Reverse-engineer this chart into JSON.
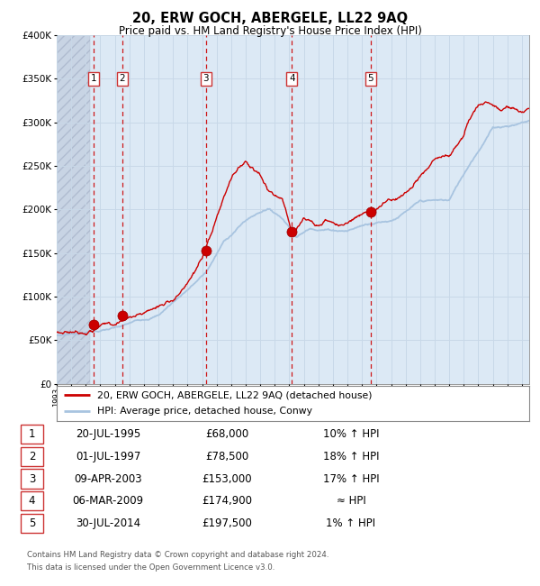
{
  "title": "20, ERW GOCH, ABERGELE, LL22 9AQ",
  "subtitle": "Price paid vs. HM Land Registry's House Price Index (HPI)",
  "legend_line1": "20, ERW GOCH, ABERGELE, LL22 9AQ (detached house)",
  "legend_line2": "HPI: Average price, detached house, Conwy",
  "footer1": "Contains HM Land Registry data © Crown copyright and database right 2024.",
  "footer2": "This data is licensed under the Open Government Licence v3.0.",
  "transactions": [
    {
      "num": 1,
      "date": "20-JUL-1995",
      "price": 68000,
      "hpi_rel": "10% ↑ HPI",
      "year": 1995.55
    },
    {
      "num": 2,
      "date": "01-JUL-1997",
      "price": 78500,
      "hpi_rel": "18% ↑ HPI",
      "year": 1997.5
    },
    {
      "num": 3,
      "date": "09-APR-2003",
      "price": 153000,
      "hpi_rel": "17% ↑ HPI",
      "year": 2003.27
    },
    {
      "num": 4,
      "date": "06-MAR-2009",
      "price": 174900,
      "hpi_rel": "≈ HPI",
      "year": 2009.18
    },
    {
      "num": 5,
      "date": "30-JUL-2014",
      "price": 197500,
      "hpi_rel": "1% ↑ HPI",
      "year": 2014.58
    }
  ],
  "hpi_color": "#a8c4e0",
  "price_color": "#cc0000",
  "dot_color": "#cc0000",
  "vline_color": "#cc0000",
  "box_edge_color": "#cc3333",
  "grid_color": "#c8d8e8",
  "bg_color": "#dce9f5",
  "hatch_color": "#c8d4e4",
  "ylim": [
    0,
    400000
  ],
  "yticks": [
    0,
    50000,
    100000,
    150000,
    200000,
    250000,
    300000,
    350000,
    400000
  ],
  "xmin": 1993.0,
  "xmax": 2025.5,
  "hpi_keypoints": [
    [
      1993.0,
      55000
    ],
    [
      1995.0,
      60000
    ],
    [
      1997.5,
      66000
    ],
    [
      2000.0,
      80000
    ],
    [
      2003.27,
      130000
    ],
    [
      2004.5,
      165000
    ],
    [
      2006.0,
      190000
    ],
    [
      2007.5,
      205000
    ],
    [
      2008.5,
      195000
    ],
    [
      2009.5,
      175000
    ],
    [
      2010.5,
      185000
    ],
    [
      2011.5,
      185000
    ],
    [
      2013.0,
      185000
    ],
    [
      2014.58,
      195000
    ],
    [
      2016.0,
      200000
    ],
    [
      2018.0,
      220000
    ],
    [
      2020.0,
      220000
    ],
    [
      2021.5,
      265000
    ],
    [
      2023.0,
      305000
    ],
    [
      2024.5,
      310000
    ],
    [
      2025.5,
      315000
    ]
  ],
  "price_keypoints": [
    [
      1993.0,
      58000
    ],
    [
      1994.5,
      62000
    ],
    [
      1995.55,
      68000
    ],
    [
      1996.0,
      72000
    ],
    [
      1997.0,
      75000
    ],
    [
      1997.5,
      78500
    ],
    [
      1998.0,
      82000
    ],
    [
      1999.0,
      88000
    ],
    [
      2000.0,
      95000
    ],
    [
      2001.0,
      105000
    ],
    [
      2002.0,
      120000
    ],
    [
      2003.27,
      153000
    ],
    [
      2004.0,
      185000
    ],
    [
      2004.8,
      220000
    ],
    [
      2005.5,
      240000
    ],
    [
      2006.0,
      248000
    ],
    [
      2007.0,
      235000
    ],
    [
      2007.5,
      220000
    ],
    [
      2008.0,
      215000
    ],
    [
      2008.5,
      210000
    ],
    [
      2009.18,
      174900
    ],
    [
      2009.5,
      180000
    ],
    [
      2010.0,
      190000
    ],
    [
      2010.5,
      185000
    ],
    [
      2011.0,
      180000
    ],
    [
      2011.5,
      185000
    ],
    [
      2012.0,
      180000
    ],
    [
      2012.5,
      178000
    ],
    [
      2013.0,
      183000
    ],
    [
      2013.5,
      188000
    ],
    [
      2014.0,
      192000
    ],
    [
      2014.58,
      197500
    ],
    [
      2015.0,
      200000
    ],
    [
      2015.5,
      205000
    ],
    [
      2016.0,
      210000
    ],
    [
      2017.0,
      220000
    ],
    [
      2018.0,
      235000
    ],
    [
      2019.0,
      250000
    ],
    [
      2020.0,
      255000
    ],
    [
      2021.0,
      275000
    ],
    [
      2021.5,
      295000
    ],
    [
      2022.0,
      310000
    ],
    [
      2022.5,
      315000
    ],
    [
      2023.0,
      310000
    ],
    [
      2023.5,
      305000
    ],
    [
      2024.0,
      310000
    ],
    [
      2024.5,
      308000
    ],
    [
      2025.0,
      305000
    ],
    [
      2025.5,
      310000
    ]
  ]
}
